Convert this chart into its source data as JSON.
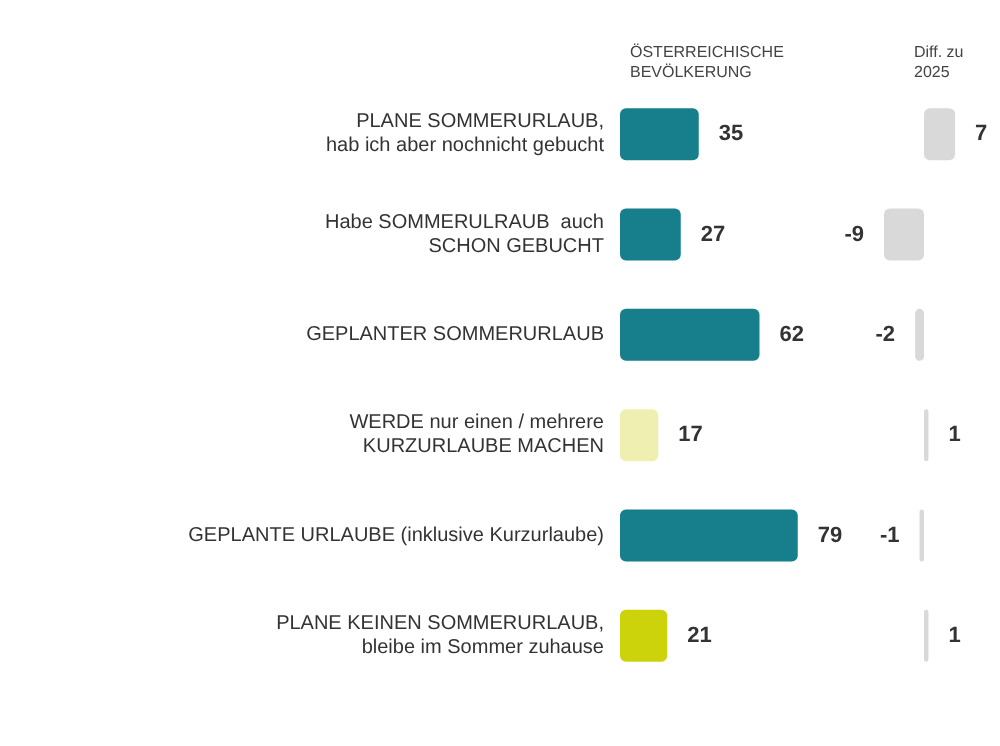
{
  "chart_data": [
    {
      "type": "bar",
      "orientation": "horizontal",
      "title": "ÖSTERREICHISCHE\nBEVÖLKERUNG",
      "categories": [
        "PLANE SOMMERURLAUB,\nhab ich aber nochnicht gebucht",
        "Habe SOMMERULRAUB  auch\nSCHON GEBUCHT",
        "GEPLANTER SOMMERURLAUB",
        "WERDE nur einen / mehrere\nKURZURLAUBE MACHEN",
        "GEPLANTE URLAUBE (inklusive Kurzurlaube)",
        "PLANE KEINEN SOMMERURLAUB,\nbleibe im Sommer zuhause"
      ],
      "values": [
        35,
        27,
        62,
        17,
        79,
        21
      ],
      "colors": [
        "#177f8c",
        "#177f8c",
        "#177f8c",
        "#f0efb2",
        "#177f8c",
        "#cdd30a"
      ],
      "tick_labels": "y",
      "data_labels": true
    },
    {
      "type": "bar",
      "orientation": "horizontal",
      "title": "Diff. zu\n2025",
      "categories": [
        null,
        null,
        null,
        null,
        null,
        null
      ],
      "values": [
        7,
        -9,
        -2,
        1,
        -1,
        1
      ],
      "color": "#d9d9d9",
      "tick_labels": false,
      "data_labels": true
    }
  ]
}
